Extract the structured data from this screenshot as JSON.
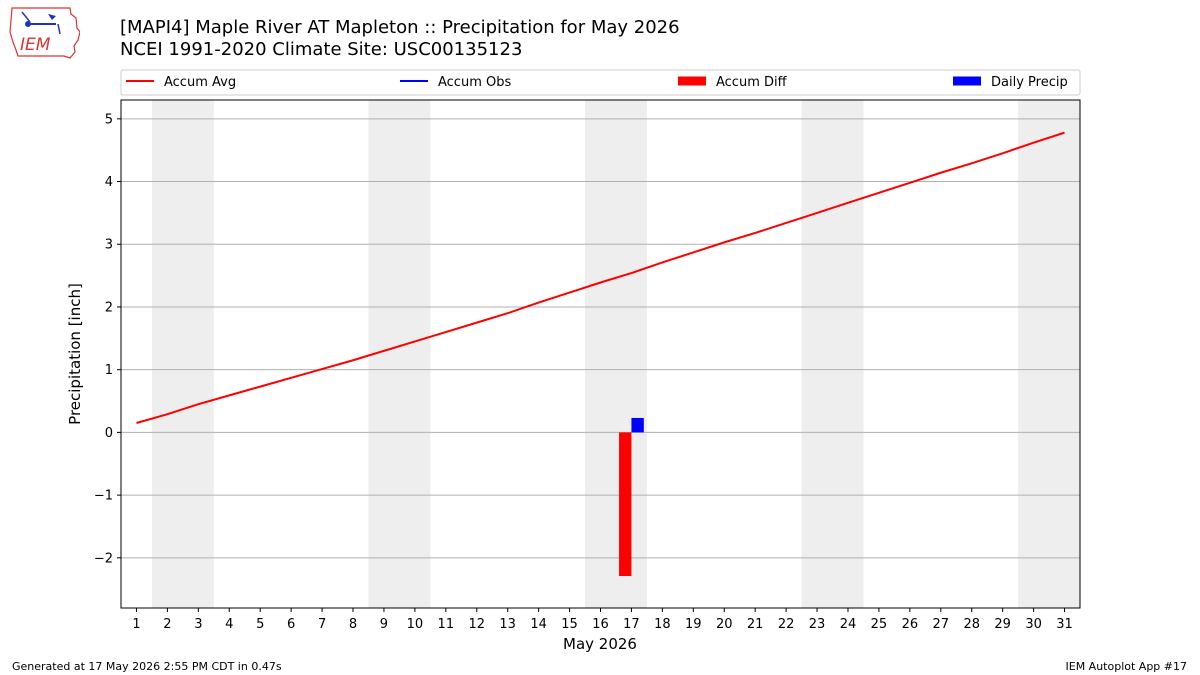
{
  "header": {
    "title_line1": "[MAPI4] Maple River  AT Mapleton :: Precipitation for May 2026",
    "title_line2": "NCEI 1991-2020 Climate Site: USC00135123",
    "logo_text": "IEM"
  },
  "footer": {
    "left": "Generated at 17 May 2026 2:55 PM CDT in 0.47s",
    "right": "IEM Autoplot App #17"
  },
  "colors": {
    "avg": "#ff0000",
    "obs": "#0000ff",
    "diff": "#ff0000",
    "daily": "#0000ff",
    "weekend": "#eeeeee",
    "grid": "#b0b0b0"
  },
  "chart_data": {
    "type": "line",
    "xlabel": "May 2026",
    "ylabel": "Precipitation [inch]",
    "xlim": [
      0.5,
      31.5
    ],
    "ylim": [
      -2.8,
      5.3
    ],
    "x_ticks": [
      1,
      2,
      3,
      4,
      5,
      6,
      7,
      8,
      9,
      10,
      11,
      12,
      13,
      14,
      15,
      16,
      17,
      18,
      19,
      20,
      21,
      22,
      23,
      24,
      25,
      26,
      27,
      28,
      29,
      30,
      31
    ],
    "y_ticks": [
      -2,
      -1,
      0,
      1,
      2,
      3,
      4,
      5
    ],
    "y_tick_labels": [
      "−2",
      "−1",
      "0",
      "1",
      "2",
      "3",
      "4",
      "5"
    ],
    "grid": "horizontal",
    "legend_position": "top",
    "legend": [
      {
        "name": "Accum Avg",
        "style": "line",
        "color": "#ff0000"
      },
      {
        "name": "Accum Obs",
        "style": "line",
        "color": "#0000ff"
      },
      {
        "name": "Accum Diff",
        "style": "bar",
        "color": "#ff0000"
      },
      {
        "name": "Daily Precip",
        "style": "bar",
        "color": "#0000ff"
      }
    ],
    "weekend_spans": [
      [
        1.5,
        3.5
      ],
      [
        8.5,
        10.5
      ],
      [
        15.5,
        17.5
      ],
      [
        22.5,
        24.5
      ],
      [
        29.5,
        31.5
      ]
    ],
    "series": [
      {
        "name": "Accum Avg",
        "type": "line",
        "x": [
          1,
          2,
          3,
          4,
          5,
          6,
          7,
          8,
          9,
          10,
          11,
          12,
          13,
          14,
          15,
          16,
          17,
          18,
          19,
          20,
          21,
          22,
          23,
          24,
          25,
          26,
          27,
          28,
          29,
          30,
          31
        ],
        "values": [
          0.15,
          0.29,
          0.45,
          0.59,
          0.73,
          0.87,
          1.01,
          1.15,
          1.3,
          1.45,
          1.6,
          1.75,
          1.9,
          2.07,
          2.23,
          2.39,
          2.54,
          2.71,
          2.87,
          3.03,
          3.18,
          3.34,
          3.5,
          3.66,
          3.82,
          3.98,
          4.14,
          4.29,
          4.45,
          4.62,
          4.78
        ]
      },
      {
        "name": "Accum Diff",
        "type": "bar",
        "x": [
          16.8
        ],
        "values": [
          -2.29
        ]
      },
      {
        "name": "Daily Precip",
        "type": "bar",
        "x": [
          17.2
        ],
        "values": [
          0.23
        ]
      }
    ]
  }
}
